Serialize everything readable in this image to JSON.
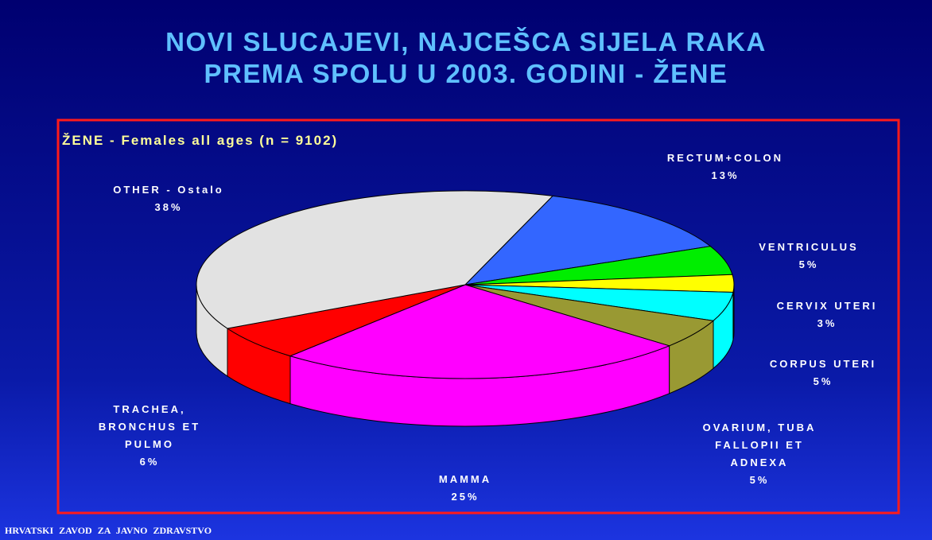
{
  "title": [
    "NOVI SLUCAJEVI, NAJCEŠCA SIJELA RAKA",
    "PREMA SPOLU U 2003. GODINI - ŽENE"
  ],
  "footer": "HRVATSKI ZAVOD ZA JAVNO ZDRAVSTVO",
  "chart_data": {
    "type": "pie",
    "subtitle": "ŽENE - Females all ages (n = 9102)",
    "categories": [
      "RECTUM+COLON",
      "VENTRICULUS",
      "CERVIX UTERI",
      "CORPUS UTERI",
      "OVARIUM, TUBA FALLOPII ET ADNEXA",
      "MAMMA",
      "TRACHEA, BRONCHUS ET PULMO",
      "OTHER - Ostalo"
    ],
    "values": [
      13,
      5,
      3,
      5,
      5,
      25,
      6,
      38
    ],
    "value_labels": [
      "13%",
      "5%",
      "3%",
      "5%",
      "5%",
      "25%",
      "6%",
      "38%"
    ],
    "colors": [
      "#3366ff",
      "#00ee00",
      "#ffff00",
      "#00ffff",
      "#999933",
      "#ff00ff",
      "#ff0000",
      "#e2e2e2"
    ]
  }
}
